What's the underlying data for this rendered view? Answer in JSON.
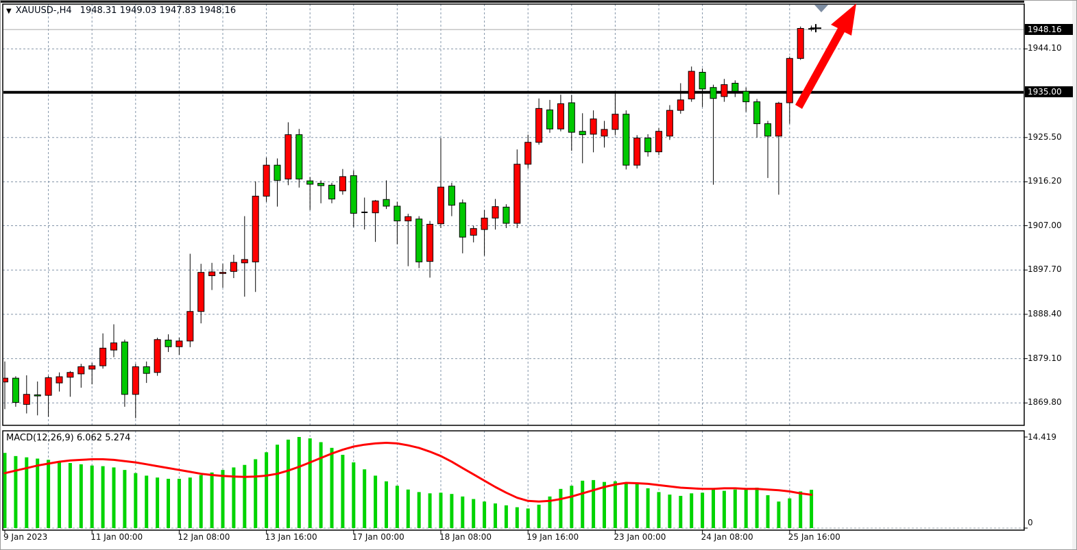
{
  "header": {
    "symbol_timeframe": "XAUUSD-,H4",
    "ohlc_text": "1948.31 1949.03 1947.83 1948.16",
    "dropdown_icon": "▼"
  },
  "indicator": {
    "label": "MACD(12,26,9) 6.062 5.274"
  },
  "price_axis": {
    "current_price_badge": "1948.16",
    "hline_badge": "1935.00",
    "ticks": [
      1944.1,
      1925.5,
      1916.2,
      1907.0,
      1897.7,
      1888.4,
      1879.1,
      1869.8
    ]
  },
  "macd_axis": {
    "max_label": "14.419",
    "zero_label": "0"
  },
  "time_axis": {
    "ticks": [
      {
        "index": 0,
        "label": "9 Jan 2023"
      },
      {
        "index": 8,
        "label": "11 Jan 00:00"
      },
      {
        "index": 16,
        "label": "12 Jan 08:00"
      },
      {
        "index": 24,
        "label": "13 Jan 16:00"
      },
      {
        "index": 32,
        "label": "17 Jan 00:00"
      },
      {
        "index": 40,
        "label": "18 Jan 08:00"
      },
      {
        "index": 48,
        "label": "19 Jan 16:00"
      },
      {
        "index": 56,
        "label": "23 Jan 00:00"
      },
      {
        "index": 64,
        "label": "24 Jan 08:00"
      },
      {
        "index": 72,
        "label": "25 Jan 16:00"
      }
    ]
  },
  "colors": {
    "bull": "#ff0000",
    "bear": "#00c800",
    "candle_outline": "#000000",
    "macd_bar": "#00d400",
    "signal_line": "#ff0000",
    "grid": "#8294a8",
    "hline": "#000000",
    "current_price_line": "#a8a8a8",
    "arrow": "#ff0000",
    "marker_triangle": "#7d8da2",
    "border": "#000000"
  },
  "chart_data": {
    "type": "candlestick",
    "symbol": "XAUUSD",
    "timeframe": "H4",
    "title": "XAUUSD-,H4 1948.31 1949.03 1947.83 1948.16",
    "price_ylim": [
      1865.1,
      1953.5
    ],
    "price_gridlines": [
      1944.1,
      1925.5,
      1916.2,
      1907.0,
      1897.7,
      1888.4,
      1879.1,
      1869.8
    ],
    "horizontal_line": 1935.0,
    "current_price": 1948.16,
    "current_ohlc": {
      "open": 1948.31,
      "high": 1949.03,
      "low": 1947.83,
      "close": 1948.16
    },
    "candles": [
      [
        1874.2,
        1878.5,
        1868.5,
        1875.0
      ],
      [
        1875.0,
        1875.4,
        1869.0,
        1869.9
      ],
      [
        1869.5,
        1875.6,
        1867.6,
        1871.6
      ],
      [
        1871.5,
        1874.3,
        1867.2,
        1871.3
      ],
      [
        1871.4,
        1875.5,
        1866.9,
        1875.1
      ],
      [
        1874.0,
        1876.2,
        1872.2,
        1875.3
      ],
      [
        1875.2,
        1876.5,
        1871.1,
        1876.2
      ],
      [
        1875.9,
        1878.0,
        1873.0,
        1877.4
      ],
      [
        1876.9,
        1878.2,
        1873.7,
        1877.6
      ],
      [
        1877.6,
        1884.4,
        1877.0,
        1881.3
      ],
      [
        1880.9,
        1886.3,
        1879.4,
        1882.4
      ],
      [
        1882.6,
        1883.1,
        1869.0,
        1871.6
      ],
      [
        1871.6,
        1878.0,
        1866.6,
        1877.4
      ],
      [
        1877.4,
        1878.5,
        1874.0,
        1876.0
      ],
      [
        1876.2,
        1883.5,
        1875.5,
        1883.1
      ],
      [
        1883.0,
        1884.2,
        1880.5,
        1881.6
      ],
      [
        1881.6,
        1883.5,
        1879.9,
        1882.8
      ],
      [
        1882.8,
        1901.1,
        1881.5,
        1889.0
      ],
      [
        1889.0,
        1899.0,
        1886.5,
        1897.2
      ],
      [
        1896.5,
        1899.2,
        1893.5,
        1897.3
      ],
      [
        1897.0,
        1899.0,
        1894.0,
        1897.2
      ],
      [
        1897.4,
        1900.9,
        1896.0,
        1899.3
      ],
      [
        1899.2,
        1909.0,
        1892.1,
        1899.9
      ],
      [
        1899.4,
        1916.3,
        1893.1,
        1913.2
      ],
      [
        1913.2,
        1921.3,
        1912.0,
        1919.7
      ],
      [
        1919.7,
        1921.1,
        1911.0,
        1916.5
      ],
      [
        1916.8,
        1928.7,
        1915.5,
        1926.1
      ],
      [
        1926.1,
        1927.3,
        1915.0,
        1916.8
      ],
      [
        1916.4,
        1917.2,
        1910.3,
        1915.7
      ],
      [
        1915.9,
        1916.5,
        1911.7,
        1915.4
      ],
      [
        1915.5,
        1916.0,
        1911.7,
        1912.6
      ],
      [
        1914.3,
        1918.9,
        1913.5,
        1917.3
      ],
      [
        1917.5,
        1918.6,
        1906.7,
        1909.6
      ],
      [
        1909.7,
        1912.9,
        1906.2,
        1909.8
      ],
      [
        1909.7,
        1912.4,
        1903.6,
        1912.2
      ],
      [
        1912.5,
        1916.5,
        1910.5,
        1911.1
      ],
      [
        1911.1,
        1912.0,
        1903.1,
        1908.0
      ],
      [
        1908.0,
        1909.5,
        1898.5,
        1908.9
      ],
      [
        1908.4,
        1909.0,
        1898.1,
        1899.4
      ],
      [
        1899.5,
        1908.0,
        1896.1,
        1907.3
      ],
      [
        1907.4,
        1925.4,
        1906.5,
        1915.1
      ],
      [
        1915.3,
        1916.0,
        1909.0,
        1911.3
      ],
      [
        1911.8,
        1912.5,
        1901.2,
        1904.6
      ],
      [
        1905.0,
        1907.0,
        1903.5,
        1906.4
      ],
      [
        1906.2,
        1910.3,
        1900.7,
        1908.6
      ],
      [
        1908.6,
        1912.6,
        1906.2,
        1911.0
      ],
      [
        1910.9,
        1911.5,
        1906.5,
        1907.5
      ],
      [
        1907.5,
        1923.0,
        1906.5,
        1919.9
      ],
      [
        1919.9,
        1926.1,
        1919.0,
        1924.5
      ],
      [
        1924.5,
        1933.7,
        1924.0,
        1931.6
      ],
      [
        1931.3,
        1933.4,
        1926.5,
        1927.3
      ],
      [
        1927.3,
        1934.5,
        1926.8,
        1932.6
      ],
      [
        1932.8,
        1934.4,
        1922.7,
        1926.6
      ],
      [
        1926.8,
        1930.6,
        1920.1,
        1926.1
      ],
      [
        1926.2,
        1931.2,
        1922.4,
        1929.4
      ],
      [
        1925.8,
        1929.0,
        1923.4,
        1927.2
      ],
      [
        1927.2,
        1935.0,
        1926.0,
        1930.4
      ],
      [
        1930.4,
        1931.2,
        1918.8,
        1919.7
      ],
      [
        1919.7,
        1926.0,
        1919.0,
        1925.4
      ],
      [
        1925.4,
        1926.2,
        1921.5,
        1922.5
      ],
      [
        1922.5,
        1927.5,
        1921.8,
        1926.8
      ],
      [
        1925.8,
        1932.3,
        1925.0,
        1931.2
      ],
      [
        1931.2,
        1936.9,
        1930.5,
        1933.4
      ],
      [
        1933.6,
        1940.4,
        1933.0,
        1939.4
      ],
      [
        1939.2,
        1940.0,
        1931.9,
        1935.7
      ],
      [
        1936.0,
        1936.6,
        1915.6,
        1933.7
      ],
      [
        1934.1,
        1937.8,
        1933.0,
        1936.6
      ],
      [
        1936.9,
        1937.5,
        1934.0,
        1935.2
      ],
      [
        1935.2,
        1936.0,
        1930.9,
        1933.0
      ],
      [
        1933.0,
        1933.6,
        1925.5,
        1928.4
      ],
      [
        1928.4,
        1929.0,
        1917.0,
        1925.8
      ],
      [
        1925.8,
        1933.0,
        1913.5,
        1932.7
      ],
      [
        1932.8,
        1942.5,
        1928.4,
        1942.1
      ],
      [
        1942.1,
        1948.8,
        1941.8,
        1948.4
      ],
      [
        1948.3,
        1949.0,
        1947.8,
        1948.2
      ]
    ],
    "macd": {
      "type": "bar+line",
      "label": "MACD(12,26,9)",
      "macd_value": 6.062,
      "signal_value": 5.274,
      "axis_max": 14.419,
      "ylim": [
        -0.35,
        15.4
      ],
      "histogram": [
        11.9,
        11.4,
        11.2,
        11.0,
        10.8,
        10.5,
        10.3,
        10.1,
        9.9,
        9.8,
        9.6,
        9.2,
        8.7,
        8.3,
        8.0,
        7.8,
        7.8,
        8.0,
        8.4,
        8.8,
        9.2,
        9.6,
        10.0,
        10.9,
        12.0,
        13.2,
        14.0,
        14.42,
        14.2,
        13.6,
        12.7,
        11.6,
        10.4,
        9.3,
        8.3,
        7.4,
        6.7,
        6.1,
        5.7,
        5.5,
        5.6,
        5.4,
        5.0,
        4.6,
        4.2,
        3.9,
        3.6,
        3.3,
        3.1,
        3.7,
        5.0,
        6.2,
        6.7,
        7.5,
        7.6,
        7.3,
        7.4,
        7.2,
        7.1,
        6.3,
        5.7,
        5.3,
        5.1,
        5.5,
        5.6,
        6.2,
        5.9,
        6.1,
        6.3,
        6.4,
        5.2,
        4.2,
        4.7,
        5.8,
        6.062
      ],
      "signal": [
        8.7,
        9.1,
        9.5,
        9.9,
        10.2,
        10.5,
        10.7,
        10.8,
        10.9,
        10.9,
        10.8,
        10.6,
        10.4,
        10.1,
        9.8,
        9.5,
        9.2,
        8.9,
        8.6,
        8.4,
        8.25,
        8.15,
        8.1,
        8.15,
        8.3,
        8.6,
        9.1,
        9.7,
        10.4,
        11.1,
        11.8,
        12.4,
        12.9,
        13.2,
        13.4,
        13.5,
        13.4,
        13.1,
        12.7,
        12.1,
        11.4,
        10.5,
        9.5,
        8.5,
        7.5,
        6.5,
        5.6,
        4.8,
        4.3,
        4.2,
        4.3,
        4.6,
        5.0,
        5.5,
        6.0,
        6.5,
        6.9,
        7.15,
        7.1,
        7.0,
        6.8,
        6.6,
        6.4,
        6.3,
        6.2,
        6.2,
        6.3,
        6.3,
        6.2,
        6.2,
        6.1,
        6.0,
        5.8,
        5.5,
        5.274
      ]
    },
    "annotations": {
      "arrow": {
        "type": "arrow-up-right",
        "from_x_index": 73,
        "note": "red bullish breakout arrow"
      },
      "triangle_marker": {
        "type": "down-triangle",
        "x_index": 75
      },
      "plus_marker": {
        "type": "current-candle-cross",
        "price": 1948.16
      }
    }
  }
}
